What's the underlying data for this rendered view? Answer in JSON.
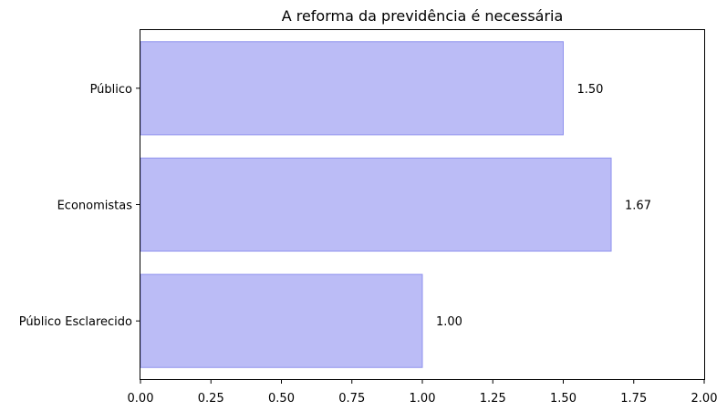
{
  "chart_data": {
    "type": "bar",
    "orientation": "horizontal",
    "title": "A reforma da previdência é necessária",
    "xlabel": "",
    "ylabel": "",
    "categories": [
      "Público",
      "Economistas",
      "Público Esclarecido"
    ],
    "values": [
      1.5,
      1.67,
      1.0
    ],
    "value_labels": [
      "1.50",
      "1.67",
      "1.00"
    ],
    "xlim": [
      0,
      2.0
    ],
    "x_ticks": [
      0.0,
      0.25,
      0.5,
      0.75,
      1.0,
      1.25,
      1.5,
      1.75,
      2.0
    ],
    "x_tick_labels": [
      "0.00",
      "0.25",
      "0.50",
      "0.75",
      "1.00",
      "1.25",
      "1.50",
      "1.75",
      "2.00"
    ],
    "grid": false,
    "legend": "none",
    "colors": {
      "bar_fill": "#bbbcf6",
      "bar_edge": "#8f92ee"
    }
  }
}
